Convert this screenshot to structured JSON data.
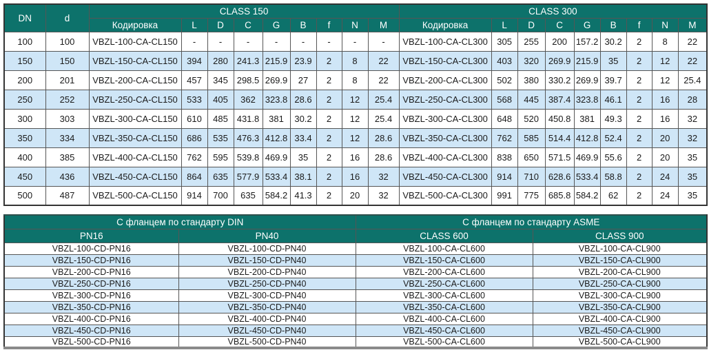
{
  "colors": {
    "header_teal": "#0d726b",
    "stripe_blue": "#cfe6f7",
    "border_gray": "#555555",
    "bottom_bar_gray": "#8a8a8a",
    "header_text": "#ffffff",
    "body_text": "#1a1a1a"
  },
  "dimensions_table": {
    "dn_label": "DN",
    "d_label": "d",
    "groups": [
      {
        "label": "CLASS 150",
        "columns": [
          "Кодировка",
          "L",
          "D",
          "C",
          "G",
          "B",
          "f",
          "N",
          "M"
        ]
      },
      {
        "label": "CLASS 300",
        "columns": [
          "Кодировка",
          "L",
          "D",
          "C",
          "G",
          "B",
          "f",
          "N",
          "M"
        ]
      }
    ],
    "rows": [
      {
        "dn": "100",
        "d": "100",
        "cl150": [
          "VBZL-100-CA-CL150",
          "-",
          "-",
          "-",
          "-",
          "-",
          "-",
          "-",
          "-"
        ],
        "cl300": [
          "VBZL-100-CA-CL300",
          "305",
          "255",
          "200",
          "157.2",
          "30.2",
          "2",
          "8",
          "22"
        ]
      },
      {
        "dn": "150",
        "d": "150",
        "cl150": [
          "VBZL-150-CA-CL150",
          "394",
          "280",
          "241.3",
          "215.9",
          "23.9",
          "2",
          "8",
          "22"
        ],
        "cl300": [
          "VBZL-150-CA-CL300",
          "403",
          "320",
          "269.9",
          "215.9",
          "35",
          "2",
          "12",
          "22"
        ]
      },
      {
        "dn": "200",
        "d": "201",
        "cl150": [
          "VBZL-200-CA-CL150",
          "457",
          "345",
          "298.5",
          "269.9",
          "27",
          "2",
          "8",
          "22"
        ],
        "cl300": [
          "VBZL-200-CA-CL300",
          "502",
          "380",
          "330.2",
          "269.9",
          "39.7",
          "2",
          "12",
          "25.4"
        ]
      },
      {
        "dn": "250",
        "d": "252",
        "cl150": [
          "VBZL-250-CA-CL150",
          "533",
          "405",
          "362",
          "323.8",
          "28.6",
          "2",
          "12",
          "25.4"
        ],
        "cl300": [
          "VBZL-250-CA-CL300",
          "568",
          "445",
          "387.4",
          "323.8",
          "46.1",
          "2",
          "16",
          "28"
        ]
      },
      {
        "dn": "300",
        "d": "303",
        "cl150": [
          "VBZL-300-CA-CL150",
          "610",
          "485",
          "431.8",
          "381",
          "30.2",
          "2",
          "12",
          "25.4"
        ],
        "cl300": [
          "VBZL-300-CA-CL300",
          "648",
          "520",
          "450.8",
          "381",
          "49.3",
          "2",
          "16",
          "32"
        ]
      },
      {
        "dn": "350",
        "d": "334",
        "cl150": [
          "VBZL-350-CA-CL150",
          "686",
          "535",
          "476.3",
          "412.8",
          "33.4",
          "2",
          "12",
          "28.6"
        ],
        "cl300": [
          "VBZL-350-CA-CL300",
          "762",
          "585",
          "514.4",
          "412.8",
          "52.4",
          "2",
          "20",
          "32"
        ]
      },
      {
        "dn": "400",
        "d": "385",
        "cl150": [
          "VBZL-400-CA-CL150",
          "762",
          "595",
          "539.8",
          "469.9",
          "35",
          "2",
          "16",
          "28.6"
        ],
        "cl300": [
          "VBZL-400-CA-CL300",
          "838",
          "650",
          "571.5",
          "469.9",
          "55.6",
          "2",
          "20",
          "35"
        ]
      },
      {
        "dn": "450",
        "d": "436",
        "cl150": [
          "VBZL-450-CA-CL150",
          "864",
          "635",
          "577.9",
          "533.4",
          "38.1",
          "2",
          "16",
          "32"
        ],
        "cl300": [
          "VBZL-450-CA-CL300",
          "914",
          "710",
          "628.6",
          "533.4",
          "58.8",
          "2",
          "24",
          "35"
        ]
      },
      {
        "dn": "500",
        "d": "487",
        "cl150": [
          "VBZL-500-CA-CL150",
          "914",
          "700",
          "635",
          "584.2",
          "41.3",
          "2",
          "20",
          "32"
        ],
        "cl300": [
          "VBZL-500-CA-CL300",
          "991",
          "775",
          "685.8",
          "584.2",
          "62",
          "2",
          "24",
          "35"
        ]
      }
    ]
  },
  "flange_table": {
    "groups": [
      {
        "title": "С фланцем по стандарту DIN",
        "columns": [
          "PN16",
          "PN40"
        ]
      },
      {
        "title": "С фланцем по стандарту ASME",
        "columns": [
          "CLASS 600",
          "CLASS 900"
        ]
      }
    ],
    "rows": [
      [
        "VBZL-100-CD-PN16",
        "VBZL-100-CD-PN40",
        "VBZL-100-CA-CL600",
        "VBZL-100-CA-CL900"
      ],
      [
        "VBZL-150-CD-PN16",
        "VBZL-150-CD-PN40",
        "VBZL-150-CA-CL600",
        "VBZL-150-CA-CL900"
      ],
      [
        "VBZL-200-CD-PN16",
        "VBZL-200-CD-PN40",
        "VBZL-200-CA-CL600",
        "VBZL-200-CA-CL900"
      ],
      [
        "VBZL-250-CD-PN16",
        "VBZL-250-CD-PN40",
        "VBZL-250-CA-CL600",
        "VBZL-250-CA-CL900"
      ],
      [
        "VBZL-300-CD-PN16",
        "VBZL-300-CD-PN40",
        "VBZL-300-CA-CL600",
        "VBZL-300-CA-CL900"
      ],
      [
        "VBZL-350-CD-PN16",
        "VBZL-350-CD-PN40",
        "VBZL-350-CA-CL600",
        "VBZL-350-CA-CL900"
      ],
      [
        "VBZL-400-CD-PN16",
        "VBZL-400-CD-PN40",
        "VBZL-400-CA-CL600",
        "VBZL-400-CA-CL900"
      ],
      [
        "VBZL-450-CD-PN16",
        "VBZL-450-CD-PN40",
        "VBZL-450-CA-CL600",
        "VBZL-450-CA-CL900"
      ],
      [
        "VBZL-500-CD-PN16",
        "VBZL-500-CD-PN40",
        "VBZL-500-CA-CL600",
        "VBZL-500-CA-CL900"
      ]
    ]
  }
}
